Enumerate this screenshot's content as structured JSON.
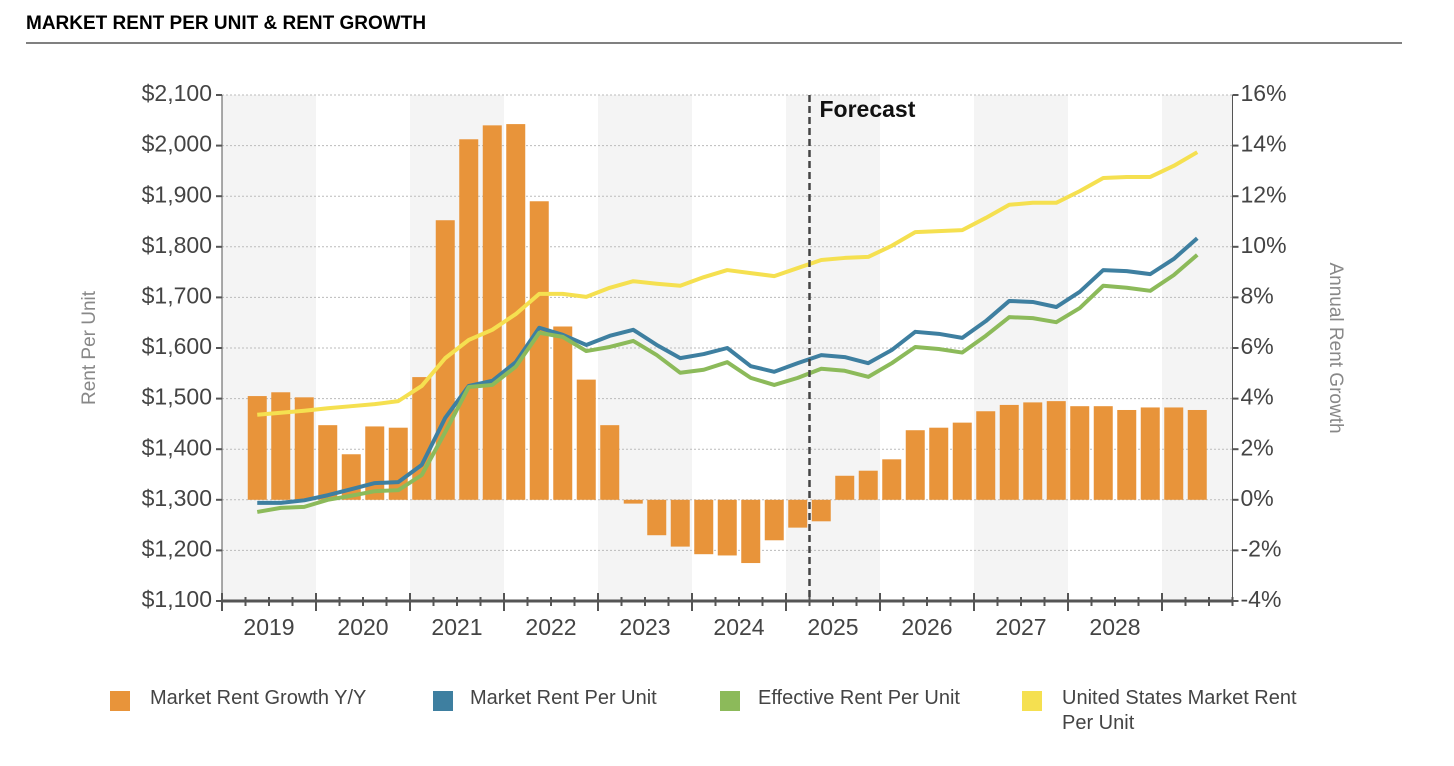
{
  "chart_data": {
    "type": "bar-line",
    "title": "MARKET RENT PER UNIT & RENT GROWTH",
    "y_label": "Rent Per Unit",
    "y2_label": "Annual Rent Growth",
    "annotations": [
      {
        "text": "Forecast"
      }
    ],
    "categories": [
      null,
      "2019",
      null,
      null,
      null,
      "2020",
      null,
      null,
      null,
      "2021",
      null,
      null,
      null,
      "2022",
      null,
      null,
      null,
      "2023",
      null,
      null,
      null,
      "2024",
      null,
      null,
      null,
      "2025",
      null,
      null,
      null,
      "2026",
      null,
      null,
      null,
      "2027",
      null,
      null,
      null,
      "2028",
      null,
      null,
      null,
      null,
      null
    ],
    "series": [
      {
        "name": "Market Rent Growth Y/Y",
        "kind": "bar",
        "axis": "y2",
        "color": "#e8943a",
        "values": [
          null,
          4.1,
          4.25,
          4.05,
          2.95,
          1.8,
          2.9,
          2.85,
          4.85,
          11.05,
          14.25,
          14.8,
          14.85,
          11.8,
          6.85,
          4.75,
          2.95,
          -0.15,
          -1.4,
          -1.85,
          -2.15,
          -2.2,
          -2.5,
          -1.6,
          -1.1,
          -0.85,
          0.95,
          1.15,
          1.6,
          2.75,
          2.85,
          3.05,
          3.5,
          3.75,
          3.85,
          3.9,
          3.7,
          3.7,
          3.55,
          3.65,
          3.65,
          3.55,
          null
        ]
      },
      {
        "name": "Market Rent Per Unit",
        "kind": "line",
        "color": "#3e7fa0",
        "values": [
          null,
          1294,
          1294,
          1299,
          1309,
          1321,
          1333,
          1335,
          1369,
          1462,
          1525,
          1535,
          1572,
          1640,
          1626,
          1606,
          1624,
          1636,
          1606,
          1580,
          1588,
          1600,
          1564,
          1553,
          1570,
          1586,
          1582,
          1570,
          1596,
          1632,
          1628,
          1620,
          1653,
          1693,
          1691,
          1681,
          1711,
          1754,
          1752,
          1746,
          1776,
          1817,
          null
        ]
      },
      {
        "name": "Effective Rent Per Unit",
        "kind": "line",
        "color": "#8cba5a",
        "values": [
          null,
          1276,
          1284,
          1286,
          1300,
          1308,
          1317,
          1319,
          1349,
          1434,
          1523,
          1527,
          1563,
          1630,
          1622,
          1594,
          1602,
          1614,
          1586,
          1551,
          1557,
          1572,
          1541,
          1527,
          1541,
          1559,
          1555,
          1543,
          1570,
          1602,
          1598,
          1591,
          1624,
          1661,
          1659,
          1651,
          1679,
          1723,
          1719,
          1713,
          1744,
          1784,
          null
        ]
      },
      {
        "name": "United States Market Rent Per Unit",
        "kind": "line",
        "color": "#f5e050",
        "values": [
          null,
          1468,
          1472,
          1476,
          1481,
          1485,
          1489,
          1495,
          1525,
          1580,
          1616,
          1636,
          1667,
          1707,
          1707,
          1701,
          1719,
          1732,
          1727,
          1723,
          1740,
          1754,
          1748,
          1742,
          1758,
          1774,
          1778,
          1780,
          1802,
          1829,
          1831,
          1833,
          1857,
          1883,
          1887,
          1887,
          1910,
          1936,
          1938,
          1938,
          1960,
          1987,
          null
        ]
      }
    ],
    "ylim": [
      1100,
      2100
    ],
    "yticks": [
      {
        "value": 1100,
        "label": "$1,100"
      },
      {
        "value": 1200,
        "label": "$1,200"
      },
      {
        "value": 1300,
        "label": "$1,300"
      },
      {
        "value": 1400,
        "label": "$1,400"
      },
      {
        "value": 1500,
        "label": "$1,500"
      },
      {
        "value": 1600,
        "label": "$1,600"
      },
      {
        "value": 1700,
        "label": "$1,700"
      },
      {
        "value": 1800,
        "label": "$1,800"
      },
      {
        "value": 1900,
        "label": "$1,900"
      },
      {
        "value": 2000,
        "label": "$2,000"
      },
      {
        "value": 2100,
        "label": "$2,100"
      }
    ],
    "y2lim": [
      -4,
      16
    ],
    "y2ticks": [
      {
        "value": -4,
        "label": "-4%"
      },
      {
        "value": -2,
        "label": "-2%"
      },
      {
        "value": 0,
        "label": "0%"
      },
      {
        "value": 2,
        "label": "2%"
      },
      {
        "value": 4,
        "label": "4%"
      },
      {
        "value": 6,
        "label": "6%"
      },
      {
        "value": 8,
        "label": "8%"
      },
      {
        "value": 10,
        "label": "10%"
      },
      {
        "value": 12,
        "label": "12%"
      },
      {
        "value": 14,
        "label": "14%"
      },
      {
        "value": 16,
        "label": "16%"
      }
    ],
    "grid": true,
    "legend": "bottom"
  }
}
